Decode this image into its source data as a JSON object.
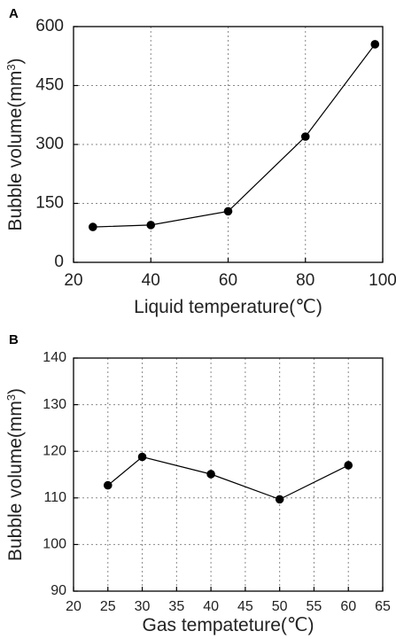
{
  "chart_data": [
    {
      "panel": "A",
      "type": "line",
      "xlabel": "Liquid temperature(℃)",
      "ylabel_prefix": "Bubble volume(mm",
      "ylabel_sup": "3",
      "ylabel_suffix": ")",
      "xlim": [
        20,
        100
      ],
      "ylim": [
        0,
        600
      ],
      "xticks": [
        20,
        40,
        60,
        80,
        100
      ],
      "yticks": [
        0,
        150,
        300,
        450,
        600
      ],
      "grid": true,
      "series": [
        {
          "x": [
            25,
            40,
            60,
            80,
            98
          ],
          "y": [
            90,
            95,
            130,
            320,
            555
          ]
        }
      ]
    },
    {
      "panel": "B",
      "type": "line",
      "xlabel": "Gas tempateture(℃)",
      "ylabel_prefix": "Bubble volume(mm",
      "ylabel_sup": "3",
      "ylabel_suffix": ")",
      "xlim": [
        20,
        65
      ],
      "ylim": [
        90,
        140
      ],
      "xticks": [
        20,
        25,
        30,
        35,
        40,
        45,
        50,
        55,
        60,
        65
      ],
      "yticks": [
        90,
        100,
        110,
        120,
        130,
        140
      ],
      "grid": true,
      "series": [
        {
          "x": [
            25,
            30,
            40,
            50,
            60
          ],
          "y": [
            112.7,
            118.8,
            115.1,
            109.7,
            117.0
          ]
        }
      ]
    }
  ]
}
